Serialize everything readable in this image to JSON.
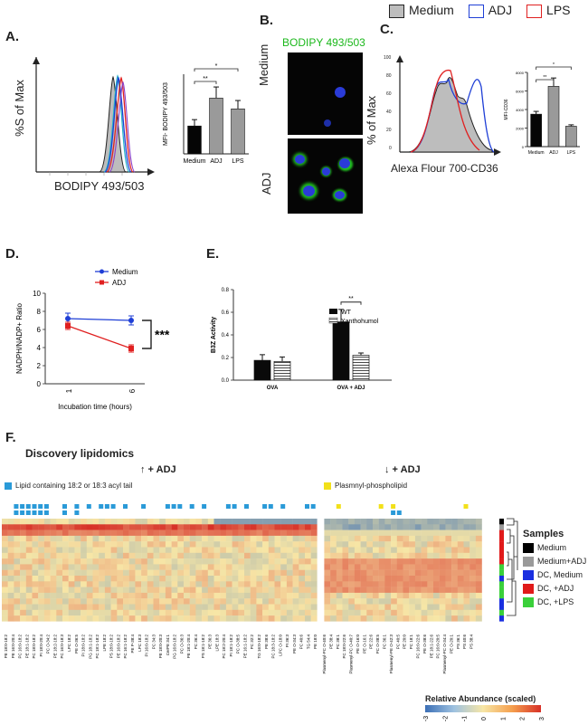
{
  "legend_top": {
    "items": [
      {
        "label": "Medium",
        "fill": "#bdbdbd",
        "stroke": "#222222"
      },
      {
        "label": "ADJ",
        "fill": "#ffffff",
        "stroke": "#1f3fd6"
      },
      {
        "label": "LPS",
        "fill": "#ffffff",
        "stroke": "#e02020"
      }
    ]
  },
  "panels": {
    "A": "A.",
    "B": "B.",
    "C": "C.",
    "D": "D.",
    "E": "E.",
    "F": "F."
  },
  "panel_a": {
    "hist_ylabel": "%S of Max",
    "hist_xlabel": "BODIPY 493/503"
  },
  "panel_b": {
    "title": "BODIPY 493/503",
    "row1": "Medium",
    "row2": "ADJ"
  },
  "panel_c": {
    "hist_ylabel": "% of Max",
    "hist_xlabel": "Alexa Flour 700-CD36",
    "hist_yticks": [
      "100",
      "80",
      "60",
      "40",
      "20",
      "0"
    ]
  },
  "panel_d": {
    "legend": [
      "Medium",
      "ADJ"
    ],
    "significance": "***"
  },
  "panel_e": {
    "legend": [
      "WT",
      "Xanthohumol"
    ],
    "significance": "**"
  },
  "panel_f": {
    "title": "Discovery lipidomics",
    "up_label": "↑ + ADJ",
    "down_label": "↓ + ADJ",
    "tail_legend": "Lipid containing 18:2 or 18:3 acyl tail",
    "plasm_legend": "Plasmnyl-phospholipid",
    "samples_title": "Samples",
    "samples": [
      {
        "label": "Medium",
        "color": "#000000"
      },
      {
        "label": "Medium+ADJ",
        "color": "#9a9a9a"
      },
      {
        "label": "DC, Medium",
        "color": "#1a2fe0"
      },
      {
        "label": "DC, +ADJ",
        "color": "#e01a1a"
      },
      {
        "label": "DC, +LPS",
        "color": "#3ad03a"
      }
    ],
    "colorbar_title": "Relative Abundance (scaled)",
    "colorbar_ticks": [
      "-3",
      "-2",
      "-1",
      "0",
      "1",
      "2",
      "3"
    ],
    "colorbar_colors": [
      "#3b6fb6",
      "#f7e6a6",
      "#d73027"
    ],
    "row_labels_left": [
      "PE 18:0-18:2",
      "PE 16:0-20:4",
      "PC 16:0-18:2",
      "PE 18:1-18:2",
      "PC 18:0-18:2",
      "PI 18:0-20:4",
      "PC O-34:2",
      "PE 18:2-18:2",
      "PC 16:0-18:3",
      "LPC 18:2",
      "PE O-36:5",
      "PI 18:0-18:2",
      "PG 18:1-18:2",
      "PC 18:1-18:2",
      "LPE 18:2",
      "PS 18:0-18:2",
      "PE 16:0-18:2",
      "PC 16:1-18:2",
      "PE P-38:4",
      "LPC 18:3",
      "PI 16:0-18:2",
      "PC 34:3",
      "PE 18:0-20:3",
      "CerPE 34:1",
      "PG 16:0-18:2",
      "PC O-36:3",
      "PE 18:1-20:4",
      "PC 36:4",
      "PS 18:1-18:2",
      "PE 36:3",
      "LPE 18:3",
      "PC 18:2-20:4",
      "PI 18:1-18:2",
      "PC O-38:5",
      "PE 16:1-18:2",
      "PC 32:2",
      "TG 16:0-18:2",
      "PE 38:6",
      "PC 18:3-18:2",
      "LPC O-18:0",
      "PI 36:3",
      "PE O-34:3",
      "PC 40:6",
      "TG 54:4",
      "PE 18:0"
    ],
    "row_labels_right": [
      "Plasmenyl-PC O-40:6",
      "PE 38:4",
      "PC 38:1",
      "PC 18:0-22:6",
      "Plasmenyl-PC O-40:7",
      "PE O-16:0",
      "PE O-16:1",
      "PE 22:6",
      "PC O-38:5",
      "PC 36:1",
      "Plasmenyl-PE O-42:3",
      "PC 40:5",
      "PE 20:0",
      "PC 18:1",
      "PC 16:0-22:6",
      "PE O-38:6",
      "PE 18:1-22:6",
      "PC 16:0-20:5",
      "Plasmenyl-PC O-34:4",
      "PE O-20:1",
      "PS 36:1",
      "PS 40:6",
      "PS 38:4"
    ]
  },
  "chart_data": [
    {
      "type": "bar",
      "panel": "A",
      "categories": [
        "Medium",
        "ADJ",
        "LPS"
      ],
      "values": [
        7000,
        14000,
        11300
      ],
      "errors": [
        1600,
        2800,
        2100
      ],
      "ylabel": "MFI- BODIPY 493/503",
      "ylim": [
        0,
        20000
      ],
      "significance": [
        {
          "from": "Medium",
          "to": "ADJ",
          "label": "**"
        },
        {
          "from": "Medium",
          "to": "LPS",
          "label": "*"
        }
      ]
    },
    {
      "type": "bar",
      "panel": "C",
      "categories": [
        "Medium",
        "ADJ",
        "LPS"
      ],
      "values": [
        3500,
        6500,
        2200
      ],
      "errors": [
        300,
        900,
        150
      ],
      "ylabel": "MFI-CD36",
      "ylim": [
        0,
        8000
      ],
      "yticks": [
        "0",
        "2000",
        "4000",
        "6000",
        "8000"
      ],
      "significance": [
        {
          "from": "Medium",
          "to": "ADJ",
          "label": "**"
        },
        {
          "from": "Medium",
          "to": "LPS",
          "label": "*"
        }
      ]
    },
    {
      "type": "line",
      "panel": "D",
      "x": [
        1,
        6
      ],
      "series": [
        {
          "name": "Medium",
          "values": [
            7.2,
            7.0
          ],
          "errors": [
            0.6,
            0.5
          ],
          "color": "#1f3fd6"
        },
        {
          "name": "ADJ",
          "values": [
            6.4,
            3.9
          ],
          "errors": [
            0.4,
            0.4
          ],
          "color": "#e02020"
        }
      ],
      "xlabel": "Incubation time (hours)",
      "ylabel": "NADPH/NADP+ Ratio",
      "ylim": [
        0,
        10
      ],
      "yticks": [
        "0",
        "2",
        "4",
        "6",
        "8",
        "10"
      ],
      "xticks": [
        "1",
        "6"
      ]
    },
    {
      "type": "bar",
      "panel": "E",
      "categories": [
        "OVA",
        "OVA + ADJ"
      ],
      "series": [
        {
          "name": "WT",
          "values": [
            0.175,
            0.515
          ],
          "errors": [
            0.05,
            0.11
          ]
        },
        {
          "name": "Xanthohumol",
          "values": [
            0.165,
            0.22
          ],
          "errors": [
            0.04,
            0.02
          ]
        }
      ],
      "ylabel": "B3Z Activity",
      "ylim": [
        0,
        0.8
      ],
      "yticks": [
        "0.0",
        "0.2",
        "0.4",
        "0.6",
        "0.8"
      ]
    }
  ]
}
